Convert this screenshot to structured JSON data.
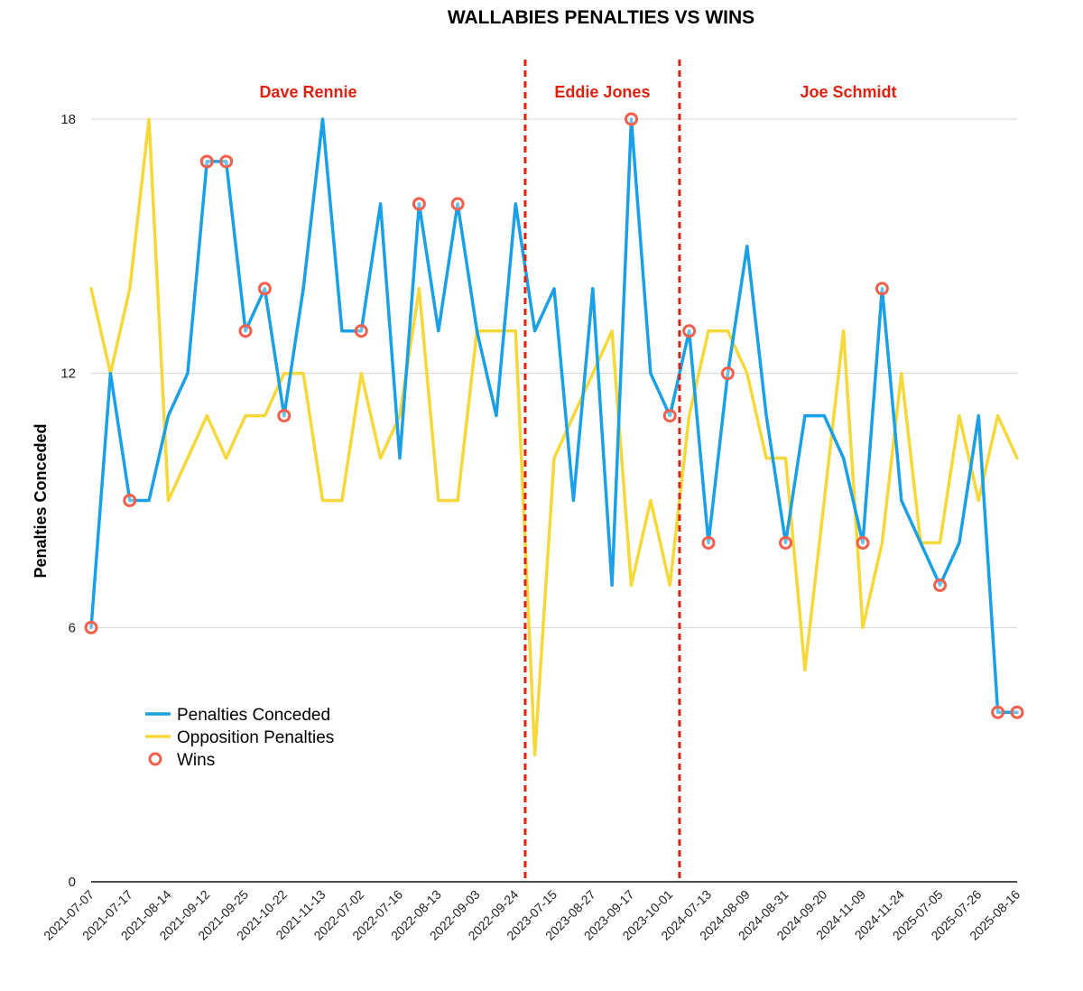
{
  "chart_data": {
    "type": "line",
    "title": "WALLABIES PENALTIES VS WINS",
    "ylabel": "Penalties Conceded",
    "xlabel": "",
    "ylim": [
      0,
      18
    ],
    "yticks": [
      0,
      6,
      12,
      18
    ],
    "grid": true,
    "legend": "bottom-left",
    "x_tick_labels": [
      "2021-07-07",
      "2021-07-17",
      "2021-08-14",
      "2021-09-12",
      "2021-09-25",
      "2021-10-22",
      "2021-11-13",
      "2022-07-02",
      "2022-07-16",
      "2022-08-13",
      "2022-09-03",
      "2022-09-24",
      "2023-07-15",
      "2023-08-27",
      "2023-09-17",
      "2023-10-01",
      "2024-07-13",
      "2024-08-09",
      "2024-08-31",
      "2024-09-20",
      "2024-11-09",
      "2024-11-24",
      "2025-07-05",
      "2025-07-26",
      "2025-08-16"
    ],
    "eras": [
      {
        "label": "Dave Rennie",
        "start_index": 0,
        "end_index": 22.5
      },
      {
        "label": "Eddie Jones",
        "start_index": 22.5,
        "end_index": 30.5
      },
      {
        "label": "Joe Schmidt",
        "start_index": 30.5,
        "end_index": 48
      }
    ],
    "era_boundaries": [
      22.5,
      30.5
    ],
    "series": [
      {
        "name": "Penalties Conceded",
        "color": "#1aa0e6",
        "values": [
          6,
          12,
          9,
          9,
          11,
          12,
          17,
          17,
          13,
          14,
          11,
          14,
          18,
          13,
          13,
          16,
          10,
          16,
          13,
          16,
          13,
          11,
          16,
          13,
          14,
          9,
          14,
          7,
          18,
          12,
          11,
          13,
          8,
          12,
          15,
          11,
          8,
          11,
          11,
          10,
          8,
          14,
          9,
          8,
          7,
          8,
          11,
          4,
          4
        ]
      },
      {
        "name": "Opposition Penalties",
        "color": "#f5d83a",
        "values": [
          14,
          12,
          14,
          18,
          9,
          10,
          11,
          10,
          11,
          11,
          12,
          12,
          9,
          9,
          12,
          10,
          11,
          14,
          9,
          9,
          13,
          13,
          13,
          3,
          10,
          11,
          12,
          13,
          7,
          9,
          7,
          11,
          13,
          13,
          12,
          10,
          10,
          5,
          9,
          13,
          6,
          8,
          12,
          8,
          8,
          11,
          9,
          11,
          10
        ]
      }
    ],
    "wins": {
      "name": "Wins",
      "color": "#f0604d",
      "indices": [
        0,
        2,
        6,
        7,
        8,
        9,
        10,
        14,
        17,
        19,
        28,
        30,
        31,
        32,
        33,
        36,
        40,
        41,
        44,
        47,
        48
      ]
    }
  }
}
